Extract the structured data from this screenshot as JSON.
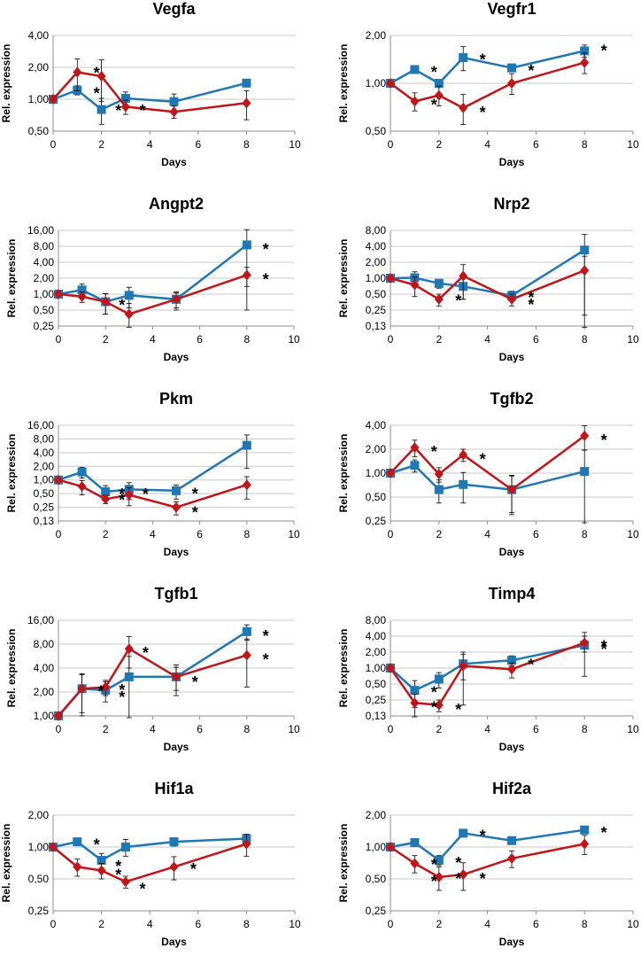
{
  "colors": {
    "series_blue": "#1f77b4",
    "series_red": "#c0161a",
    "grid": "#c8c8c8",
    "axis": "#8c8c8c"
  },
  "chart_data": [
    {
      "type": "line",
      "title": "Vegfa",
      "xlabel": "Days",
      "ylabel": "Rel. expression",
      "yscale": "log",
      "x": [
        0,
        1,
        2,
        3,
        5,
        8
      ],
      "xlim": [
        0,
        10
      ],
      "xticks": [
        0,
        2,
        4,
        6,
        8,
        10
      ],
      "yticks": [
        0.5,
        1,
        2,
        4
      ],
      "ytick_labels": [
        "0,50",
        "1,00",
        "2,00",
        "4,00"
      ],
      "series": [
        {
          "name": "blue",
          "marker": "square",
          "values": [
            1.0,
            1.22,
            0.8,
            1.02,
            0.95,
            1.42
          ],
          "err": [
            0,
            0.12,
            0.22,
            0.15,
            0.17,
            0
          ]
        },
        {
          "name": "red",
          "marker": "diamond",
          "values": [
            1.0,
            1.8,
            1.65,
            0.85,
            0.76,
            0.92
          ],
          "err": [
            0,
            0.6,
            0.7,
            0.13,
            0.1,
            0.28
          ]
        }
      ],
      "stars": [
        {
          "x": 1.8,
          "y": 1.95
        },
        {
          "x": 1.8,
          "y": 1.25
        },
        {
          "x": 2.7,
          "y": 0.86
        },
        {
          "x": 3.7,
          "y": 0.86
        }
      ]
    },
    {
      "type": "line",
      "title": "Vegfr1",
      "xlabel": "Days",
      "ylabel": "Rel. expression",
      "yscale": "log",
      "x": [
        0,
        1,
        2,
        3,
        5,
        8
      ],
      "xlim": [
        0,
        10
      ],
      "xticks": [
        0,
        2,
        4,
        6,
        8,
        10
      ],
      "yticks": [
        0.5,
        1,
        2
      ],
      "ytick_labels": [
        "0,50",
        "1,00",
        "2,00"
      ],
      "series": [
        {
          "name": "blue",
          "marker": "square",
          "values": [
            1.0,
            1.22,
            1.0,
            1.45,
            1.25,
            1.6
          ],
          "err": [
            0,
            0.06,
            0.06,
            0.25,
            0.07,
            0.14
          ]
        },
        {
          "name": "red",
          "marker": "diamond",
          "values": [
            1.0,
            0.77,
            0.84,
            0.7,
            1.0,
            1.35
          ],
          "err": [
            0,
            0.1,
            0.12,
            0.15,
            0.15,
            0.2
          ]
        }
      ],
      "stars": [
        {
          "x": 1.8,
          "y": 1.25
        },
        {
          "x": 1.8,
          "y": 0.78
        },
        {
          "x": 3.8,
          "y": 1.5
        },
        {
          "x": 3.8,
          "y": 0.7
        },
        {
          "x": 5.8,
          "y": 1.28
        },
        {
          "x": 8.8,
          "y": 1.7
        }
      ]
    },
    {
      "type": "line",
      "title": "Angpt2",
      "xlabel": "Days",
      "ylabel": "Rel. expression",
      "yscale": "log",
      "x": [
        0,
        1,
        2,
        3,
        5,
        8
      ],
      "xlim": [
        0,
        10
      ],
      "xticks": [
        0,
        2,
        4,
        6,
        8,
        10
      ],
      "yticks": [
        0.25,
        0.5,
        1,
        2,
        4,
        8,
        16
      ],
      "ytick_labels": [
        "0,25",
        "0,50",
        "1,00",
        "2,00",
        "4,00",
        "8,00",
        "16,00"
      ],
      "series": [
        {
          "name": "blue",
          "marker": "square",
          "values": [
            1.0,
            1.2,
            0.72,
            0.95,
            0.8,
            8.5
          ],
          "err": [
            0,
            0.35,
            0.3,
            0.4,
            0.3,
            8
          ]
        },
        {
          "name": "red",
          "marker": "diamond",
          "values": [
            1.0,
            0.9,
            0.72,
            0.42,
            0.8,
            2.3
          ],
          "err": [
            0,
            0.2,
            0.3,
            0.25,
            0.25,
            0.9
          ]
        }
      ],
      "stars": [
        {
          "x": 2.7,
          "y": 0.75
        },
        {
          "x": 8.8,
          "y": 8.5
        },
        {
          "x": 8.8,
          "y": 2.3
        }
      ]
    },
    {
      "type": "line",
      "title": "Nrp2",
      "xlabel": "Days",
      "ylabel": "Rel. expression",
      "yscale": "log",
      "x": [
        0,
        1,
        2,
        3,
        5,
        8
      ],
      "xlim": [
        0,
        10
      ],
      "xticks": [
        0,
        2,
        4,
        6,
        8,
        10
      ],
      "yticks": [
        0.125,
        0.25,
        0.5,
        1,
        2,
        4,
        8
      ],
      "ytick_labels": [
        "0,13",
        "0,25",
        "0,50",
        "1,00",
        "2,00",
        "4,00",
        "8,00"
      ],
      "series": [
        {
          "name": "blue",
          "marker": "square",
          "values": [
            1.0,
            1.02,
            0.8,
            0.7,
            0.47,
            3.4
          ],
          "err": [
            0,
            0.3,
            0.15,
            0.3,
            0.1,
            3.3
          ]
        },
        {
          "name": "red",
          "marker": "diamond",
          "values": [
            1.0,
            0.75,
            0.4,
            1.1,
            0.4,
            1.4
          ],
          "err": [
            0,
            0.3,
            0.1,
            0.7,
            0.1,
            1.2
          ]
        }
      ],
      "stars": [
        {
          "x": 2.8,
          "y": 0.45
        },
        {
          "x": 5.8,
          "y": 0.52
        },
        {
          "x": 5.8,
          "y": 0.38
        }
      ]
    },
    {
      "type": "line",
      "title": "Pkm",
      "xlabel": "Days",
      "ylabel": "Rel. expression",
      "yscale": "log",
      "x": [
        0,
        1,
        2,
        3,
        5,
        8
      ],
      "xlim": [
        0,
        10
      ],
      "xticks": [
        0,
        2,
        4,
        6,
        8,
        10
      ],
      "yticks": [
        0.125,
        0.25,
        0.5,
        1,
        2,
        4,
        8,
        16
      ],
      "ytick_labels": [
        "0,13",
        "0,25",
        "0,50",
        "1,00",
        "2,00",
        "4,00",
        "8,00",
        "16,00"
      ],
      "series": [
        {
          "name": "blue",
          "marker": "square",
          "values": [
            1.0,
            1.5,
            0.55,
            0.62,
            0.58,
            5.8
          ],
          "err": [
            0,
            0.4,
            0.2,
            0.25,
            0.2,
            4
          ]
        },
        {
          "name": "red",
          "marker": "diamond",
          "values": [
            1.0,
            0.72,
            0.38,
            0.47,
            0.25,
            0.78
          ],
          "err": [
            0,
            0.25,
            0.08,
            0.2,
            0.08,
            0.4
          ]
        }
      ],
      "stars": [
        {
          "x": 2.7,
          "y": 0.6
        },
        {
          "x": 2.7,
          "y": 0.45
        },
        {
          "x": 3.7,
          "y": 0.6
        },
        {
          "x": 5.8,
          "y": 0.62
        },
        {
          "x": 5.8,
          "y": 0.24
        }
      ]
    },
    {
      "type": "line",
      "title": "Tgfb2",
      "xlabel": "Days",
      "ylabel": "Rel. expression",
      "yscale": "log",
      "x": [
        0,
        1,
        2,
        3,
        5,
        8
      ],
      "xlim": [
        0,
        10
      ],
      "xticks": [
        0,
        2,
        4,
        6,
        8,
        10
      ],
      "yticks": [
        0.25,
        0.5,
        1,
        2,
        4
      ],
      "ytick_labels": [
        "0,25",
        "0,50",
        "1,00",
        "2,00",
        "4,00"
      ],
      "series": [
        {
          "name": "blue",
          "marker": "square",
          "values": [
            1.0,
            1.25,
            0.62,
            0.72,
            0.62,
            1.05
          ],
          "err": [
            0,
            0.22,
            0.2,
            0.3,
            0.3,
            0.9
          ]
        },
        {
          "name": "red",
          "marker": "diamond",
          "values": [
            1.0,
            2.1,
            0.97,
            1.7,
            0.62,
            2.95
          ],
          "err": [
            0,
            0.5,
            0.2,
            0.3,
            0.32,
            1.0
          ]
        }
      ],
      "stars": [
        {
          "x": 1.8,
          "y": 2.1
        },
        {
          "x": 3.8,
          "y": 1.7
        },
        {
          "x": 8.8,
          "y": 2.95
        }
      ]
    },
    {
      "type": "line",
      "title": "Tgfb1",
      "xlabel": "Days",
      "ylabel": "Rel. expression",
      "yscale": "log",
      "x": [
        0,
        1,
        2,
        3,
        5,
        8
      ],
      "xlim": [
        0,
        10
      ],
      "xticks": [
        0,
        2,
        4,
        6,
        8,
        10
      ],
      "yticks": [
        1,
        2,
        4,
        8,
        16
      ],
      "ytick_labels": [
        "1,00",
        "2,00",
        "4,00",
        "8,00",
        "16,00"
      ],
      "series": [
        {
          "name": "blue",
          "marker": "square",
          "values": [
            1.0,
            2.2,
            2.1,
            3.1,
            3.1,
            11.5
          ],
          "err": [
            0,
            1.2,
            0.6,
            2.5,
            1.3,
            2.5
          ]
        },
        {
          "name": "red",
          "marker": "diamond",
          "values": [
            1.0,
            2.2,
            2.3,
            7.0,
            3.1,
            5.8
          ],
          "err": [
            0,
            1.1,
            0.5,
            3.0,
            1.0,
            3.5
          ]
        }
      ],
      "stars": [
        {
          "x": 1.8,
          "y": 2.3
        },
        {
          "x": 2.7,
          "y": 2.4
        },
        {
          "x": 2.7,
          "y": 1.95
        },
        {
          "x": 3.7,
          "y": 7.0
        },
        {
          "x": 5.8,
          "y": 3.0
        },
        {
          "x": 8.8,
          "y": 11.5
        },
        {
          "x": 8.8,
          "y": 5.8
        }
      ]
    },
    {
      "type": "line",
      "title": "Timp4",
      "xlabel": "Days",
      "ylabel": "Rel. expression",
      "yscale": "log",
      "x": [
        0,
        1,
        2,
        3,
        5,
        8
      ],
      "xlim": [
        0,
        10
      ],
      "xticks": [
        0,
        2,
        4,
        6,
        8,
        10
      ],
      "yticks": [
        0.125,
        0.25,
        0.5,
        1,
        2,
        4,
        8
      ],
      "ytick_labels": [
        "0,13",
        "0,25",
        "0,50",
        "1,00",
        "2,00",
        "4,00",
        "8,00"
      ],
      "series": [
        {
          "name": "blue",
          "marker": "square",
          "values": [
            1.0,
            0.38,
            0.62,
            1.2,
            1.4,
            2.7
          ],
          "err": [
            0,
            0.2,
            0.2,
            0.6,
            0.3,
            2.0
          ]
        },
        {
          "name": "red",
          "marker": "diamond",
          "values": [
            1.0,
            0.22,
            0.2,
            1.1,
            0.95,
            3.0
          ],
          "err": [
            0,
            0.1,
            0.05,
            0.9,
            0.3,
            1.0
          ]
        }
      ],
      "stars": [
        {
          "x": 1.8,
          "y": 0.42
        },
        {
          "x": 1.8,
          "y": 0.22
        },
        {
          "x": 2.8,
          "y": 0.2
        },
        {
          "x": 5.8,
          "y": 1.4
        },
        {
          "x": 8.8,
          "y": 3.1
        },
        {
          "x": 8.8,
          "y": 2.7
        }
      ]
    },
    {
      "type": "line",
      "title": "Hif1a",
      "xlabel": "Days",
      "ylabel": "Rel. expression",
      "yscale": "log",
      "x": [
        0,
        1,
        2,
        3,
        5,
        8
      ],
      "xlim": [
        0,
        10
      ],
      "xticks": [
        0,
        2,
        4,
        6,
        8,
        10
      ],
      "yticks": [
        0.25,
        0.5,
        1,
        2
      ],
      "ytick_labels": [
        "0,25",
        "0,50",
        "1,00",
        "2,00"
      ],
      "series": [
        {
          "name": "blue",
          "marker": "square",
          "values": [
            1.0,
            1.12,
            0.75,
            1.0,
            1.12,
            1.2
          ],
          "err": [
            0,
            0.05,
            0.12,
            0.18,
            0.1,
            0.05
          ]
        },
        {
          "name": "red",
          "marker": "diamond",
          "values": [
            1.0,
            0.65,
            0.6,
            0.47,
            0.65,
            1.07
          ],
          "err": [
            0,
            0.12,
            0.1,
            0.06,
            0.16,
            0.25
          ]
        }
      ],
      "stars": [
        {
          "x": 1.8,
          "y": 1.15
        },
        {
          "x": 2.7,
          "y": 0.72
        },
        {
          "x": 2.7,
          "y": 0.6
        },
        {
          "x": 3.7,
          "y": 0.44
        },
        {
          "x": 5.8,
          "y": 0.68
        }
      ]
    },
    {
      "type": "line",
      "title": "Hif2a",
      "xlabel": "Days",
      "ylabel": "Rel. expression",
      "yscale": "log",
      "x": [
        0,
        1,
        2,
        3,
        5,
        8
      ],
      "xlim": [
        0,
        10
      ],
      "xticks": [
        0,
        2,
        4,
        6,
        8,
        10
      ],
      "yticks": [
        0.25,
        0.5,
        1,
        2
      ],
      "ytick_labels": [
        "0,25",
        "0,50",
        "1,00",
        "2,00"
      ],
      "series": [
        {
          "name": "blue",
          "marker": "square",
          "values": [
            1.0,
            1.1,
            0.75,
            1.35,
            1.15,
            1.45
          ],
          "err": [
            0,
            0.06,
            0.08,
            0.08,
            0.08,
            0.07
          ]
        },
        {
          "name": "red",
          "marker": "diamond",
          "values": [
            1.0,
            0.7,
            0.52,
            0.55,
            0.78,
            1.07
          ],
          "err": [
            0,
            0.13,
            0.13,
            0.16,
            0.14,
            0.22
          ]
        }
      ],
      "stars": [
        {
          "x": 1.8,
          "y": 0.75
        },
        {
          "x": 1.8,
          "y": 0.52
        },
        {
          "x": 2.8,
          "y": 0.78
        },
        {
          "x": 2.8,
          "y": 0.55
        },
        {
          "x": 3.8,
          "y": 1.4
        },
        {
          "x": 3.8,
          "y": 0.55
        },
        {
          "x": 8.8,
          "y": 1.5
        }
      ]
    }
  ]
}
